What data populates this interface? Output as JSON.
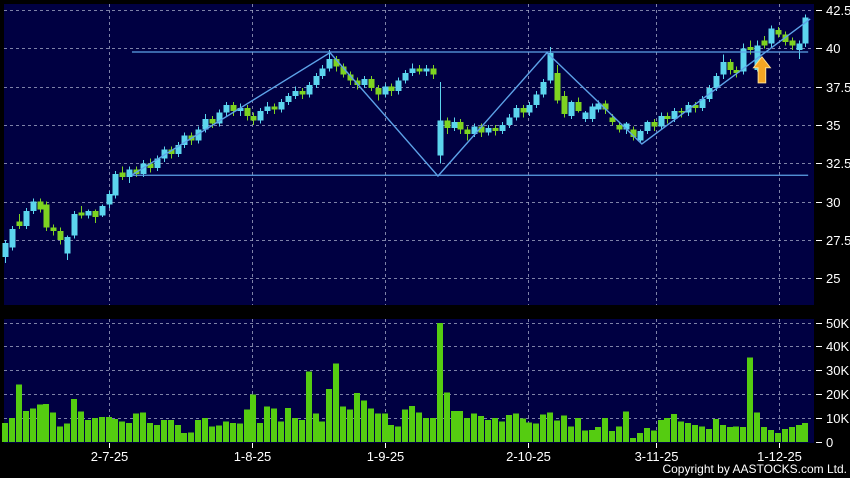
{
  "chart_data": {
    "type": "candlestick",
    "title": "",
    "panels": [
      "price",
      "volume"
    ],
    "price_axis": {
      "side": "right",
      "ticks": [
        42.5,
        40,
        37.5,
        35,
        32.5,
        30,
        27.5,
        25
      ],
      "labels": [
        "42.5",
        "40",
        "37.5",
        "35",
        "32.5",
        "30",
        "27.5",
        "25"
      ],
      "range": [
        23.25,
        42.9
      ]
    },
    "volume_axis": {
      "side": "right",
      "ticks": [
        50,
        40,
        30,
        20,
        10,
        0
      ],
      "labels": [
        "50K",
        "40K",
        "30K",
        "20K",
        "10K",
        "0"
      ],
      "range": [
        0,
        52
      ]
    },
    "date_axis": [
      {
        "label": "2-7-25",
        "index": 15.07
      },
      {
        "label": "1-8-25",
        "index": 35.8
      },
      {
        "label": "1-9-25",
        "index": 55.1
      },
      {
        "label": "2-10-25",
        "index": 75.8
      },
      {
        "label": "3-11-25",
        "index": 94.35
      },
      {
        "label": "1-12-25",
        "index": 112.2
      }
    ],
    "candles_ohlc": [
      [
        26.4,
        27.5,
        26.0,
        27.3
      ],
      [
        27.0,
        28.4,
        26.8,
        28.2
      ],
      [
        28.7,
        29.2,
        28.2,
        28.4
      ],
      [
        28.4,
        29.6,
        28.2,
        29.4
      ],
      [
        29.4,
        30.2,
        29.2,
        30.0
      ],
      [
        30.0,
        30.2,
        29.3,
        29.5
      ],
      [
        29.8,
        30.0,
        28.1,
        28.3
      ],
      [
        28.3,
        28.5,
        27.8,
        28.1
      ],
      [
        28.1,
        28.3,
        27.2,
        27.5
      ],
      [
        26.6,
        27.8,
        26.2,
        27.7
      ],
      [
        27.8,
        29.4,
        27.6,
        29.2
      ],
      [
        29.3,
        29.7,
        28.9,
        29.1
      ],
      [
        29.1,
        29.5,
        28.9,
        29.4
      ],
      [
        29.4,
        29.5,
        28.6,
        29.0
      ],
      [
        29.1,
        29.8,
        29.0,
        29.7
      ],
      [
        29.8,
        30.7,
        29.6,
        30.5
      ],
      [
        30.4,
        32.0,
        30.2,
        31.8
      ],
      [
        31.9,
        32.3,
        31.4,
        31.6
      ],
      [
        31.6,
        32.3,
        31.2,
        32.1
      ],
      [
        32.1,
        32.3,
        31.6,
        31.8
      ],
      [
        31.8,
        32.7,
        31.6,
        32.5
      ],
      [
        32.5,
        32.8,
        31.9,
        32.2
      ],
      [
        32.2,
        33.0,
        32.0,
        32.8
      ],
      [
        32.8,
        33.6,
        32.6,
        33.4
      ],
      [
        33.4,
        33.6,
        32.8,
        33.1
      ],
      [
        33.1,
        33.9,
        32.9,
        33.7
      ],
      [
        33.7,
        34.5,
        33.5,
        34.3
      ],
      [
        34.3,
        34.5,
        33.7,
        34.0
      ],
      [
        34.0,
        34.9,
        33.8,
        34.7
      ],
      [
        34.7,
        35.7,
        34.5,
        35.4
      ],
      [
        35.4,
        35.6,
        34.8,
        35.1
      ],
      [
        35.1,
        36.0,
        34.9,
        35.8
      ],
      [
        35.8,
        36.5,
        35.6,
        36.3
      ],
      [
        36.3,
        36.5,
        35.6,
        35.9
      ],
      [
        35.9,
        36.4,
        35.6,
        36.1
      ],
      [
        36.1,
        36.3,
        35.3,
        35.6
      ],
      [
        35.6,
        35.8,
        35.0,
        35.3
      ],
      [
        35.3,
        36.1,
        35.1,
        35.9
      ],
      [
        35.9,
        36.5,
        35.7,
        36.2
      ],
      [
        36.2,
        36.4,
        35.7,
        36.0
      ],
      [
        36.0,
        36.7,
        35.8,
        36.5
      ],
      [
        36.5,
        37.1,
        36.3,
        36.9
      ],
      [
        36.9,
        37.5,
        36.7,
        37.2
      ],
      [
        37.2,
        37.4,
        36.7,
        37.0
      ],
      [
        37.0,
        37.8,
        36.8,
        37.6
      ],
      [
        37.6,
        38.4,
        37.4,
        38.2
      ],
      [
        38.2,
        38.9,
        38.0,
        38.7
      ],
      [
        38.7,
        39.9,
        38.5,
        39.3
      ],
      [
        39.3,
        39.5,
        38.5,
        38.8
      ],
      [
        38.8,
        39.0,
        38.1,
        38.3
      ],
      [
        38.3,
        38.5,
        37.6,
        37.9
      ],
      [
        37.9,
        38.1,
        37.3,
        37.6
      ],
      [
        37.6,
        38.2,
        37.4,
        38.0
      ],
      [
        38.0,
        38.2,
        37.2,
        37.4
      ],
      [
        37.4,
        37.6,
        36.6,
        37.0
      ],
      [
        37.0,
        37.7,
        36.8,
        37.5
      ],
      [
        37.5,
        37.7,
        36.9,
        37.2
      ],
      [
        37.2,
        38.1,
        37.0,
        37.9
      ],
      [
        37.9,
        38.6,
        37.7,
        38.4
      ],
      [
        38.4,
        39.0,
        38.2,
        38.7
      ],
      [
        38.7,
        38.9,
        38.3,
        38.5
      ],
      [
        38.5,
        38.9,
        38.2,
        38.7
      ],
      [
        38.7,
        38.9,
        38.0,
        38.3
      ],
      [
        33.0,
        37.8,
        32.5,
        35.3
      ],
      [
        35.3,
        35.5,
        34.4,
        34.8
      ],
      [
        34.8,
        35.5,
        34.6,
        35.2
      ],
      [
        35.2,
        35.4,
        34.4,
        34.7
      ],
      [
        34.7,
        34.9,
        34.0,
        34.4
      ],
      [
        34.4,
        35.1,
        34.2,
        34.9
      ],
      [
        34.9,
        35.1,
        34.2,
        34.5
      ],
      [
        34.5,
        35.0,
        34.3,
        34.8
      ],
      [
        34.8,
        35.0,
        34.3,
        34.6
      ],
      [
        34.6,
        35.2,
        34.4,
        35.0
      ],
      [
        35.0,
        35.7,
        34.8,
        35.5
      ],
      [
        35.5,
        36.3,
        35.3,
        36.1
      ],
      [
        36.1,
        36.3,
        35.5,
        35.8
      ],
      [
        35.8,
        36.5,
        35.6,
        36.3
      ],
      [
        36.3,
        37.2,
        36.1,
        37.0
      ],
      [
        37.0,
        38.0,
        36.8,
        37.8
      ],
      [
        37.9,
        40.1,
        37.7,
        39.7
      ],
      [
        38.4,
        38.9,
        36.4,
        36.6
      ],
      [
        36.9,
        37.2,
        35.5,
        35.7
      ],
      [
        35.6,
        36.6,
        35.4,
        36.5
      ],
      [
        36.5,
        36.8,
        35.8,
        35.9
      ],
      [
        35.4,
        35.9,
        35.2,
        35.8
      ],
      [
        35.4,
        36.4,
        35.2,
        36.2
      ],
      [
        36.0,
        36.6,
        35.8,
        36.4
      ],
      [
        36.4,
        36.6,
        35.7,
        36.0
      ],
      [
        35.5,
        35.7,
        35.0,
        35.2
      ],
      [
        35.0,
        35.2,
        34.5,
        34.7
      ],
      [
        34.7,
        35.2,
        34.4,
        35.1
      ],
      [
        34.7,
        34.9,
        34.0,
        34.2
      ],
      [
        34.0,
        34.7,
        33.9,
        34.6
      ],
      [
        34.6,
        35.3,
        34.4,
        35.2
      ],
      [
        35.2,
        35.4,
        34.6,
        34.9
      ],
      [
        34.9,
        35.8,
        34.7,
        35.6
      ],
      [
        35.6,
        35.8,
        35.1,
        35.4
      ],
      [
        35.4,
        36.1,
        35.2,
        35.9
      ],
      [
        35.9,
        36.1,
        35.5,
        35.8
      ],
      [
        35.8,
        36.5,
        35.6,
        36.3
      ],
      [
        36.3,
        36.5,
        35.8,
        36.1
      ],
      [
        36.1,
        36.9,
        35.9,
        36.7
      ],
      [
        36.7,
        37.6,
        36.5,
        37.4
      ],
      [
        37.4,
        38.4,
        37.2,
        38.2
      ],
      [
        38.3,
        39.6,
        38.0,
        39.1
      ],
      [
        39.1,
        39.3,
        38.3,
        38.6
      ],
      [
        38.6,
        38.8,
        38.1,
        38.4
      ],
      [
        38.5,
        40.3,
        38.3,
        40.0
      ],
      [
        40.1,
        40.5,
        39.6,
        39.9
      ],
      [
        38.6,
        40.5,
        38.5,
        40.2
      ],
      [
        40.5,
        40.8,
        40.0,
        40.2
      ],
      [
        40.3,
        41.5,
        40.1,
        41.3
      ],
      [
        41.2,
        41.4,
        40.7,
        40.9
      ],
      [
        40.9,
        41.1,
        40.2,
        40.4
      ],
      [
        40.5,
        40.7,
        39.9,
        40.2
      ],
      [
        39.9,
        40.5,
        39.3,
        40.3
      ],
      [
        40.3,
        42.2,
        40.1,
        42.0
      ]
    ],
    "volumes_k": [
      8,
      10,
      24,
      13,
      14,
      15.6,
      15.9,
      12.4,
      6.5,
      7.7,
      18,
      12.8,
      9.3,
      10,
      10.5,
      10.5,
      9.6,
      8.6,
      8,
      12,
      12.4,
      8,
      7.2,
      9.3,
      9.3,
      7.2,
      3.8,
      4,
      9.3,
      10,
      6.5,
      6.8,
      8.6,
      8,
      7.7,
      13.5,
      19.8,
      8,
      14.9,
      14,
      8.6,
      14.2,
      10,
      9.3,
      29.5,
      12,
      8.6,
      22.2,
      32.8,
      14.9,
      13.5,
      20.5,
      17.4,
      14,
      12,
      12,
      7.2,
      6.5,
      13.5,
      15,
      12.4,
      10,
      10,
      49.8,
      20.8,
      13,
      13,
      10,
      12,
      10.8,
      9.3,
      10,
      8.6,
      11.2,
      12,
      9.8,
      8.2,
      7.7,
      11.6,
      12.4,
      9,
      11,
      6.4,
      10,
      4.8,
      5,
      6.2,
      10,
      4.5,
      6.5,
      12.8,
      1.7,
      3.8,
      5.9,
      4.8,
      9.3,
      10,
      11.8,
      8.6,
      8,
      7.2,
      6.5,
      5.5,
      9.6,
      7.2,
      6.2,
      6.5,
      6.2,
      35.4,
      12.4,
      6.2,
      5,
      3.8,
      5.5,
      6.2,
      7.2,
      8
    ],
    "annotations": {
      "resistance_line": {
        "price": 39.76,
        "from_index": 18.4,
        "to_index": 116.4
      },
      "support_line": {
        "price": 31.72,
        "from_index": 18.4,
        "to_index": 116.4
      },
      "zigzag_points": [
        [
          18.4,
          31.74
        ],
        [
          47.1,
          39.72
        ],
        [
          62.75,
          31.67
        ],
        [
          78.55,
          39.72
        ],
        [
          92.3,
          33.76
        ],
        [
          116.7,
          41.92
        ]
      ],
      "arrow": {
        "index": 109.7,
        "tip_price": 39.45,
        "base_price": 37.75,
        "direction": "up"
      }
    },
    "colors": {
      "page_background": "#000000",
      "panel_background": "#000042",
      "grid": "#a9aecb",
      "candle_up": "#5cd5ee",
      "candle_down": "#7ed321",
      "volume_bar": "#55cc11",
      "trendline": "#5da2e8",
      "arrow_fill": "#f5a623",
      "arrow_outline": "#ffdf91",
      "axis_text": "#ffffff"
    },
    "legend": null,
    "grid": "dashed"
  },
  "footer": {
    "copyright": "Copyright by AASTOCKS.com Ltd."
  }
}
